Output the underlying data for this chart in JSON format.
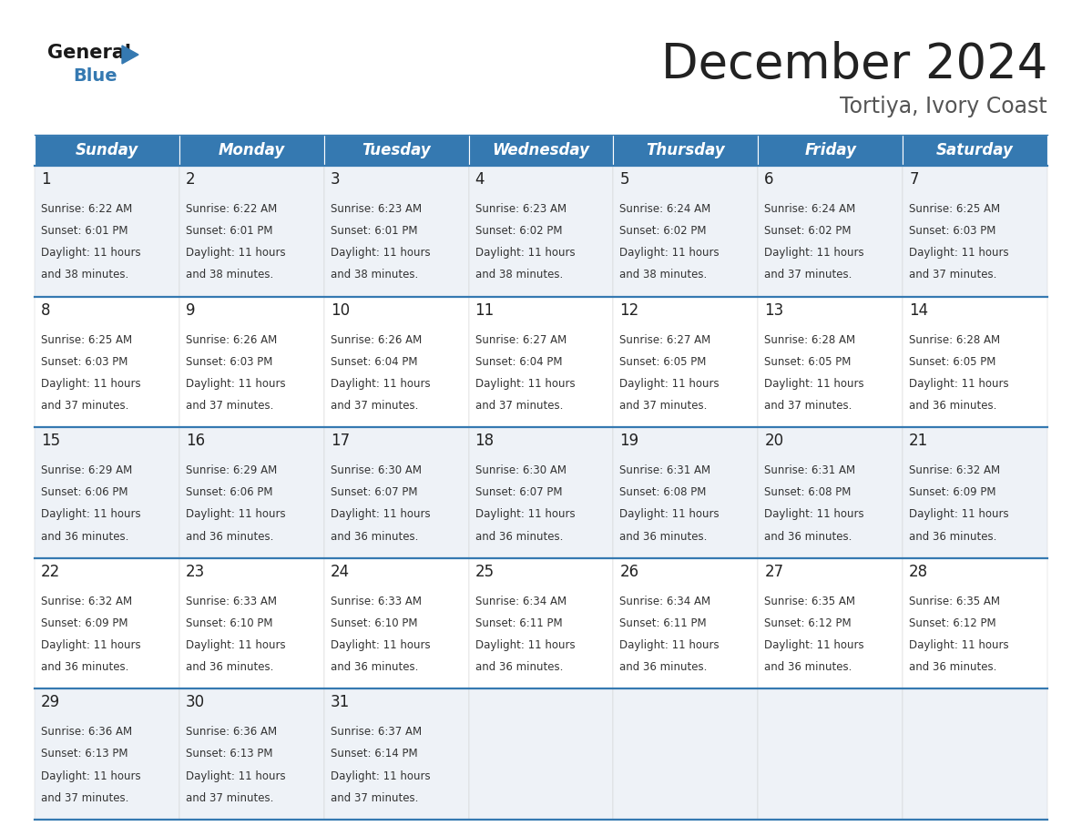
{
  "title": "December 2024",
  "subtitle": "Tortiya, Ivory Coast",
  "header_color": "#3579b1",
  "header_text_color": "#ffffff",
  "cell_bg_even": "#eef2f7",
  "cell_bg_odd": "#ffffff",
  "border_color": "#3579b1",
  "text_color": "#333333",
  "day_num_color": "#222222",
  "days_of_week": [
    "Sunday",
    "Monday",
    "Tuesday",
    "Wednesday",
    "Thursday",
    "Friday",
    "Saturday"
  ],
  "weeks": [
    [
      {
        "day": 1,
        "sunrise": "6:22 AM",
        "sunset": "6:01 PM",
        "daylight": "11 hours and 38 minutes."
      },
      {
        "day": 2,
        "sunrise": "6:22 AM",
        "sunset": "6:01 PM",
        "daylight": "11 hours and 38 minutes."
      },
      {
        "day": 3,
        "sunrise": "6:23 AM",
        "sunset": "6:01 PM",
        "daylight": "11 hours and 38 minutes."
      },
      {
        "day": 4,
        "sunrise": "6:23 AM",
        "sunset": "6:02 PM",
        "daylight": "11 hours and 38 minutes."
      },
      {
        "day": 5,
        "sunrise": "6:24 AM",
        "sunset": "6:02 PM",
        "daylight": "11 hours and 38 minutes."
      },
      {
        "day": 6,
        "sunrise": "6:24 AM",
        "sunset": "6:02 PM",
        "daylight": "11 hours and 37 minutes."
      },
      {
        "day": 7,
        "sunrise": "6:25 AM",
        "sunset": "6:03 PM",
        "daylight": "11 hours and 37 minutes."
      }
    ],
    [
      {
        "day": 8,
        "sunrise": "6:25 AM",
        "sunset": "6:03 PM",
        "daylight": "11 hours and 37 minutes."
      },
      {
        "day": 9,
        "sunrise": "6:26 AM",
        "sunset": "6:03 PM",
        "daylight": "11 hours and 37 minutes."
      },
      {
        "day": 10,
        "sunrise": "6:26 AM",
        "sunset": "6:04 PM",
        "daylight": "11 hours and 37 minutes."
      },
      {
        "day": 11,
        "sunrise": "6:27 AM",
        "sunset": "6:04 PM",
        "daylight": "11 hours and 37 minutes."
      },
      {
        "day": 12,
        "sunrise": "6:27 AM",
        "sunset": "6:05 PM",
        "daylight": "11 hours and 37 minutes."
      },
      {
        "day": 13,
        "sunrise": "6:28 AM",
        "sunset": "6:05 PM",
        "daylight": "11 hours and 37 minutes."
      },
      {
        "day": 14,
        "sunrise": "6:28 AM",
        "sunset": "6:05 PM",
        "daylight": "11 hours and 36 minutes."
      }
    ],
    [
      {
        "day": 15,
        "sunrise": "6:29 AM",
        "sunset": "6:06 PM",
        "daylight": "11 hours and 36 minutes."
      },
      {
        "day": 16,
        "sunrise": "6:29 AM",
        "sunset": "6:06 PM",
        "daylight": "11 hours and 36 minutes."
      },
      {
        "day": 17,
        "sunrise": "6:30 AM",
        "sunset": "6:07 PM",
        "daylight": "11 hours and 36 minutes."
      },
      {
        "day": 18,
        "sunrise": "6:30 AM",
        "sunset": "6:07 PM",
        "daylight": "11 hours and 36 minutes."
      },
      {
        "day": 19,
        "sunrise": "6:31 AM",
        "sunset": "6:08 PM",
        "daylight": "11 hours and 36 minutes."
      },
      {
        "day": 20,
        "sunrise": "6:31 AM",
        "sunset": "6:08 PM",
        "daylight": "11 hours and 36 minutes."
      },
      {
        "day": 21,
        "sunrise": "6:32 AM",
        "sunset": "6:09 PM",
        "daylight": "11 hours and 36 minutes."
      }
    ],
    [
      {
        "day": 22,
        "sunrise": "6:32 AM",
        "sunset": "6:09 PM",
        "daylight": "11 hours and 36 minutes."
      },
      {
        "day": 23,
        "sunrise": "6:33 AM",
        "sunset": "6:10 PM",
        "daylight": "11 hours and 36 minutes."
      },
      {
        "day": 24,
        "sunrise": "6:33 AM",
        "sunset": "6:10 PM",
        "daylight": "11 hours and 36 minutes."
      },
      {
        "day": 25,
        "sunrise": "6:34 AM",
        "sunset": "6:11 PM",
        "daylight": "11 hours and 36 minutes."
      },
      {
        "day": 26,
        "sunrise": "6:34 AM",
        "sunset": "6:11 PM",
        "daylight": "11 hours and 36 minutes."
      },
      {
        "day": 27,
        "sunrise": "6:35 AM",
        "sunset": "6:12 PM",
        "daylight": "11 hours and 36 minutes."
      },
      {
        "day": 28,
        "sunrise": "6:35 AM",
        "sunset": "6:12 PM",
        "daylight": "11 hours and 36 minutes."
      }
    ],
    [
      {
        "day": 29,
        "sunrise": "6:36 AM",
        "sunset": "6:13 PM",
        "daylight": "11 hours and 37 minutes."
      },
      {
        "day": 30,
        "sunrise": "6:36 AM",
        "sunset": "6:13 PM",
        "daylight": "11 hours and 37 minutes."
      },
      {
        "day": 31,
        "sunrise": "6:37 AM",
        "sunset": "6:14 PM",
        "daylight": "11 hours and 37 minutes."
      },
      null,
      null,
      null,
      null
    ]
  ],
  "title_fontsize": 38,
  "subtitle_fontsize": 17,
  "header_fontsize": 12,
  "day_num_fontsize": 12,
  "cell_text_fontsize": 8.5
}
